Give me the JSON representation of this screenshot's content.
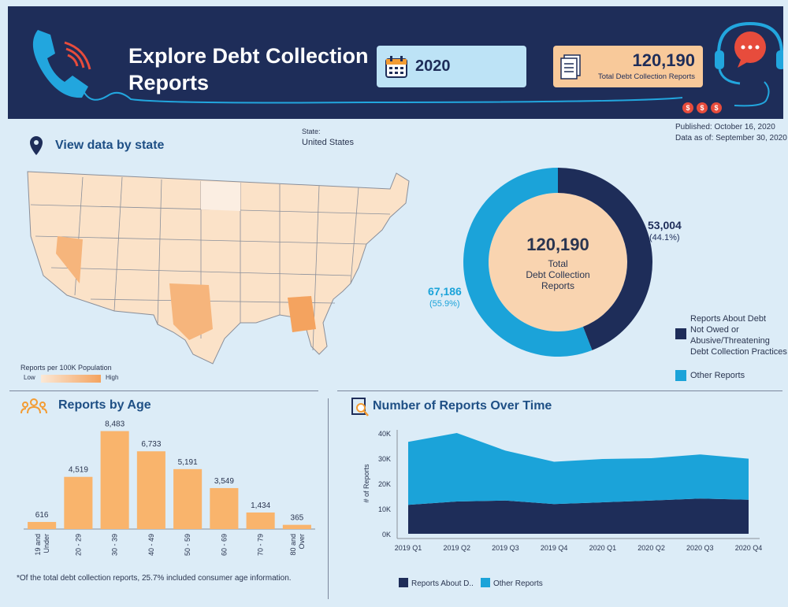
{
  "header": {
    "title": "Explore Debt Collection Reports",
    "year": "2020",
    "total_value": "120,190",
    "total_label": "Total Debt Collection Reports",
    "phone_icon": "phone-icon",
    "calendar_icon": "calendar-icon",
    "document_icon": "document-icon",
    "headset_icon": "headset-chat-icon",
    "dollar_badges": [
      "$",
      "$",
      "$"
    ]
  },
  "meta": {
    "state_label": "State:",
    "state_value": "United States",
    "published": "Published: October 16, 2020",
    "data_as_of": "Data as of: September 30, 2020"
  },
  "map": {
    "title": "View data by state",
    "legend_title": "Reports per 100K Population",
    "legend_low": "Low",
    "legend_high": "High",
    "colors": {
      "low": "#fbe8d6",
      "high": "#f4a35f"
    }
  },
  "donut": {
    "center_value": "120,190",
    "center_label_1": "Total",
    "center_label_2": "Debt Collection",
    "center_label_3": "Reports",
    "segments": [
      {
        "name": "Reports About Debt Not Owed or Abusive/Threatening Debt Collection Practices",
        "value": 53004,
        "value_label": "53,004",
        "pct_label": "(44.1%)",
        "color": "#1e2d59"
      },
      {
        "name": "Other Reports",
        "value": 67186,
        "value_label": "67,186",
        "pct_label": "(55.9%)",
        "color": "#1ba3d9"
      }
    ],
    "legend": [
      {
        "lines": [
          "Reports About Debt",
          "Not Owed or",
          "Abusive/Threatening",
          "Debt Collection Practices"
        ],
        "color": "#1e2d59"
      },
      {
        "lines": [
          "Other Reports"
        ],
        "color": "#1ba3d9"
      }
    ]
  },
  "age": {
    "title": "Reports by Age",
    "icon": "people-icon",
    "footnote": "*Of the total debt collection reports, 25.7% included consumer age information."
  },
  "time": {
    "title": "Number of Reports Over Time",
    "icon": "magnifier-document-icon"
  },
  "chart_data": [
    {
      "type": "bar",
      "title": "Reports by Age",
      "categories": [
        "19 and Under",
        "20 - 29",
        "30 - 39",
        "40 - 49",
        "50 - 59",
        "60 - 69",
        "70 - 79",
        "80 and Over"
      ],
      "values": [
        616,
        4519,
        8483,
        6733,
        5191,
        3549,
        1434,
        365
      ],
      "value_labels": [
        "616",
        "4,519",
        "8,483",
        "6,733",
        "5,191",
        "3,549",
        "1,434",
        "365"
      ],
      "color": "#f9b46c",
      "ylim": [
        0,
        9000
      ]
    },
    {
      "type": "area",
      "title": "Number of Reports Over Time",
      "ylabel": "# of Reports",
      "x": [
        "2019 Q1",
        "2019 Q2",
        "2019 Q3",
        "2019 Q4",
        "2020 Q1",
        "2020 Q2",
        "2020 Q3",
        "2020 Q4"
      ],
      "yticks": [
        "0K",
        "10K",
        "20K",
        "30K",
        "40K"
      ],
      "ylim": [
        0,
        40000
      ],
      "stacked": true,
      "series": [
        {
          "name": "Reports About D..",
          "values": [
            11500,
            12800,
            13200,
            11800,
            12500,
            13200,
            14000,
            13500
          ],
          "color": "#1e2d59"
        },
        {
          "name": "Other Reports",
          "values": [
            25000,
            27200,
            19800,
            16800,
            17200,
            16800,
            17500,
            16300
          ],
          "color": "#1ba3d9"
        }
      ],
      "grid": false,
      "legend_position": "bottom"
    }
  ]
}
